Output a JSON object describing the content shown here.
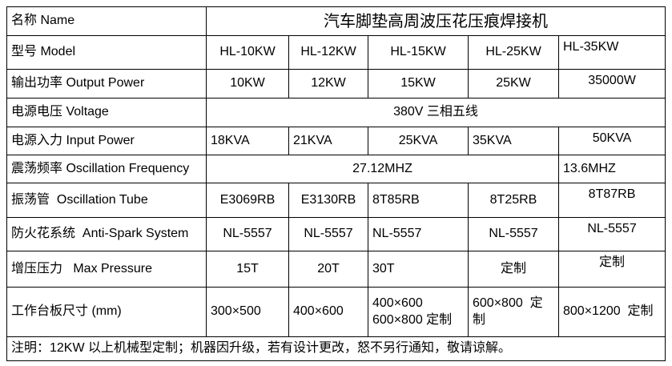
{
  "colors": {
    "background": "#ffffff",
    "border": "#000000",
    "text": "#000000"
  },
  "table": {
    "rows": [
      {
        "label": "名称 Name",
        "cells": [
          {
            "text": "汽车脚垫高周波压花压痕焊接机",
            "colspan": 5,
            "align": "center",
            "title": true
          }
        ]
      },
      {
        "label": "型号 Model",
        "cells": [
          {
            "text": "HL-10KW",
            "align": "center"
          },
          {
            "text": "HL-12KW",
            "align": "center"
          },
          {
            "text": "HL-15KW",
            "align": "center"
          },
          {
            "text": "HL-25KW",
            "align": "center"
          },
          {
            "text": "HL-35KW",
            "align": "left",
            "valign": "top"
          }
        ]
      },
      {
        "label": "输出功率 Output Power",
        "cells": [
          {
            "text": "10KW",
            "align": "center"
          },
          {
            "text": "12KW",
            "align": "center"
          },
          {
            "text": "15KW",
            "align": "center"
          },
          {
            "text": "25KW",
            "align": "center"
          },
          {
            "text": "35000W",
            "align": "center",
            "valign": "top"
          }
        ]
      },
      {
        "label": "电源电压 Voltage",
        "cells": [
          {
            "text": "380V 三相五线",
            "colspan": 5,
            "align": "center"
          }
        ]
      },
      {
        "label": "电源入力 Input Power",
        "cells": [
          {
            "text": "18KVA",
            "align": "left"
          },
          {
            "text": "21KVA",
            "align": "left"
          },
          {
            "text": "25KVA",
            "align": "center"
          },
          {
            "text": "35KVA",
            "align": "left"
          },
          {
            "text": "50KVA",
            "align": "center",
            "valign": "top"
          }
        ]
      },
      {
        "label": "震荡频率 Oscillation Frequency",
        "cells": [
          {
            "text": "27.12MHZ",
            "colspan": 4,
            "align": "center"
          },
          {
            "text": "13.6MHZ",
            "align": "left"
          }
        ]
      },
      {
        "label": "振荡管  Oscillation Tube",
        "cells": [
          {
            "text": "E3069RB",
            "align": "center"
          },
          {
            "text": "E3130RB",
            "align": "center"
          },
          {
            "text": "8T85RB",
            "align": "left"
          },
          {
            "text": "8T25RB",
            "align": "center"
          },
          {
            "text": "8T87RB",
            "align": "center",
            "valign": "top"
          }
        ]
      },
      {
        "label": "防火花系统  Anti-Spark System",
        "cells": [
          {
            "text": "NL-5557",
            "align": "center"
          },
          {
            "text": "NL-5557",
            "align": "center"
          },
          {
            "text": "NL-5557",
            "align": "left"
          },
          {
            "text": "NL-5557",
            "align": "center"
          },
          {
            "text": "NL-5557",
            "align": "center",
            "valign": "top"
          }
        ]
      },
      {
        "label": "增压压力   Max Pressure",
        "cells": [
          {
            "text": "15T",
            "align": "center"
          },
          {
            "text": "20T",
            "align": "center"
          },
          {
            "text": "30T",
            "align": "left"
          },
          {
            "text": "定制",
            "align": "center"
          },
          {
            "text": "定制",
            "align": "center",
            "valign": "top"
          }
        ]
      },
      {
        "label": "工作台板尺寸 (mm)",
        "cells": [
          {
            "text": "300×500",
            "align": "left"
          },
          {
            "text": "400×600",
            "align": "left"
          },
          {
            "lines": [
              "400×600",
              "600×800 定制"
            ],
            "align": "left"
          },
          {
            "text": "600×800  定制",
            "align": "left"
          },
          {
            "text": "800×1200  定制",
            "align": "left"
          }
        ]
      },
      {
        "label": null,
        "cells": [
          {
            "text": "注明：12KW 以上机械型定制；机器因升级，若有设计更改，怒不另行通知，敬请谅解。",
            "colspan": 6,
            "align": "left",
            "note": true
          }
        ]
      }
    ]
  }
}
